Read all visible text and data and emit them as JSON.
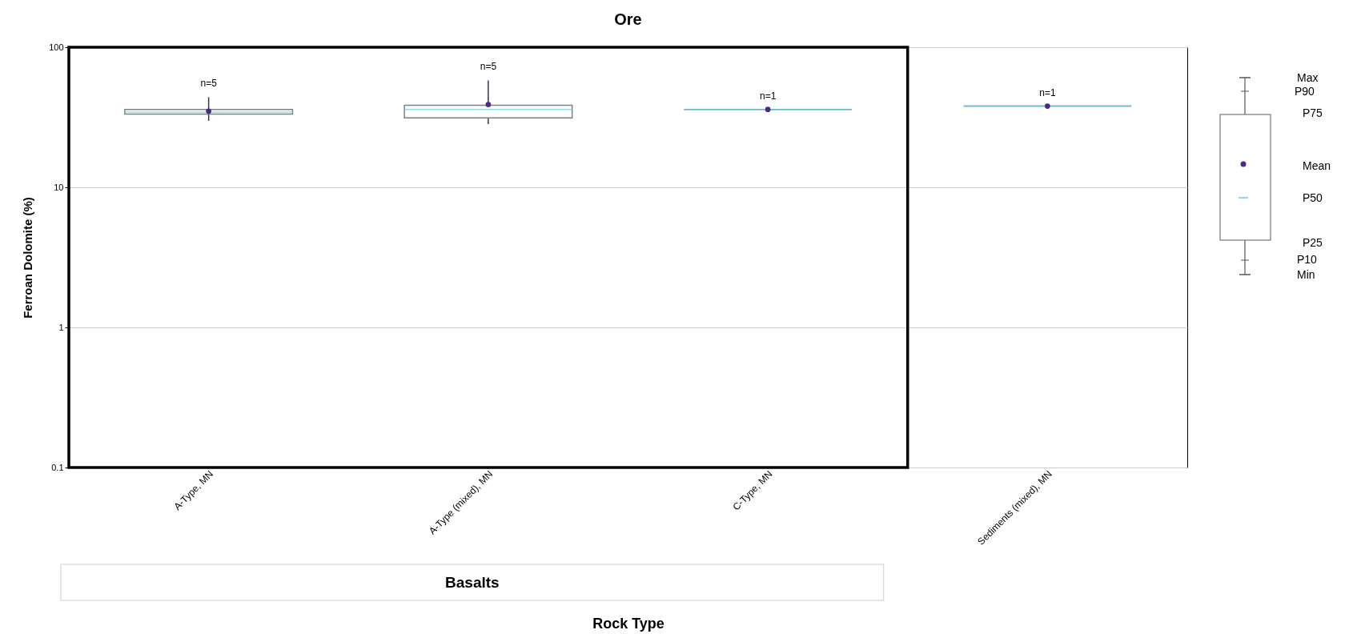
{
  "chart_data": {
    "type": "box",
    "title": "Ore",
    "xlabel": "Rock Type",
    "ylabel": "Ferroan Dolomite (%)",
    "categories": [
      "A-Type, MN",
      "A-Type (mixed), MN",
      "C-Type, MN",
      "Sediments (mixed), MN"
    ],
    "boxes": [
      {
        "low": 29.8,
        "q1": 33.3,
        "median": 34.5,
        "q3": 36,
        "high": 44,
        "mean": 35
      },
      {
        "low": 28.3,
        "q1": 31.3,
        "median": 36,
        "q3": 38.5,
        "high": 58,
        "mean": 39
      },
      {
        "low": 36,
        "q1": 36,
        "median": 36,
        "q3": 36,
        "high": 36,
        "mean": 36
      },
      {
        "low": 38,
        "q1": 38,
        "median": 38,
        "q3": 38,
        "high": 38,
        "mean": 38
      }
    ],
    "ylim": [
      0.1,
      100
    ],
    "yticks": [
      0.1,
      1,
      10,
      100
    ],
    "log": true,
    "grid": "y",
    "annotations": [
      "n=5",
      "n=5",
      "n=1",
      "n=1",
      "Basalts",
      "Max",
      "P90",
      "P75",
      "Mean",
      "P50",
      "P25",
      "P10",
      "Min"
    ]
  }
}
